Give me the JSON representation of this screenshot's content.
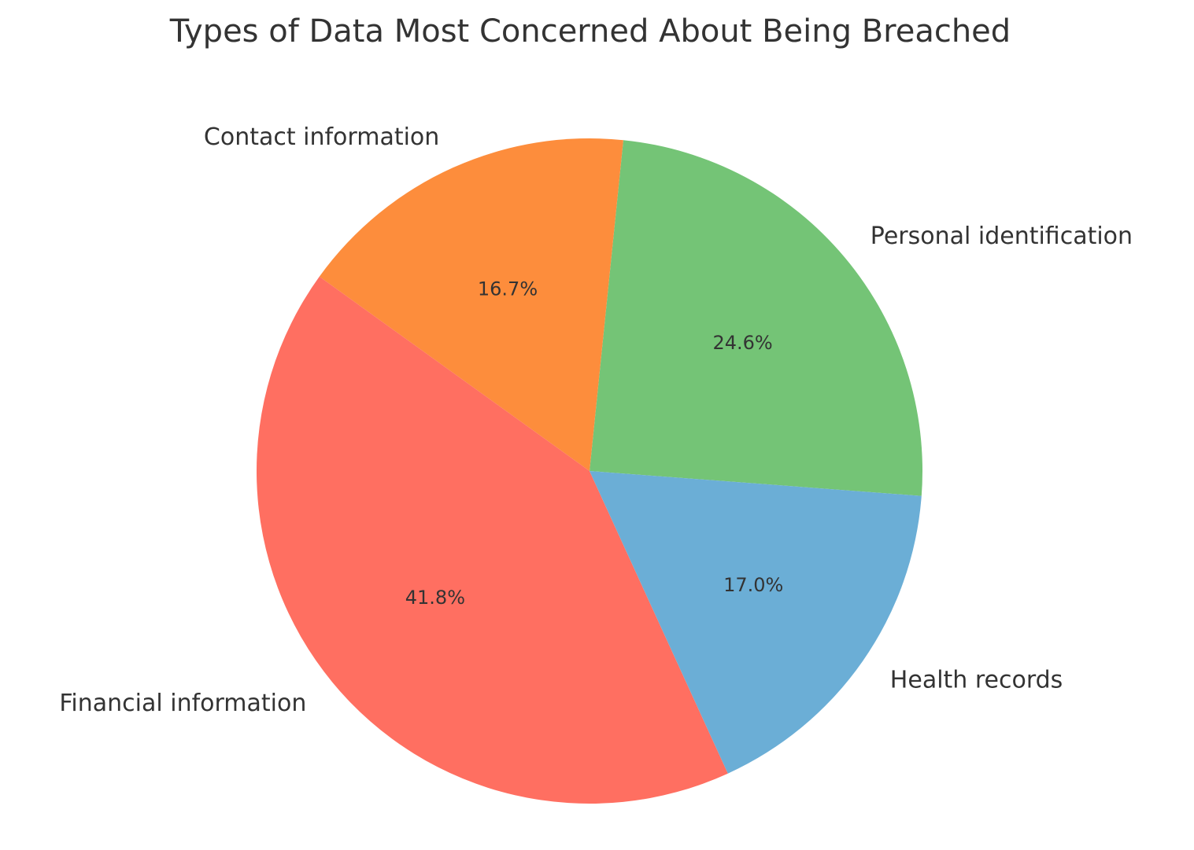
{
  "chart_data": {
    "type": "pie",
    "title": "Types of Data Most Concerned About Being Breached",
    "categories": [
      "Personal identification",
      "Contact information",
      "Financial information",
      "Health records"
    ],
    "values": [
      24.6,
      16.7,
      41.8,
      17.0
    ],
    "labels": [
      "24.6%",
      "16.7%",
      "41.8%",
      "17.0%"
    ],
    "colors": [
      "#74c476",
      "#fd8d3c",
      "#ff6f61",
      "#6baed6"
    ],
    "start_angle_deg": -4.3,
    "direction": "counterclockwise",
    "legend": "none"
  }
}
